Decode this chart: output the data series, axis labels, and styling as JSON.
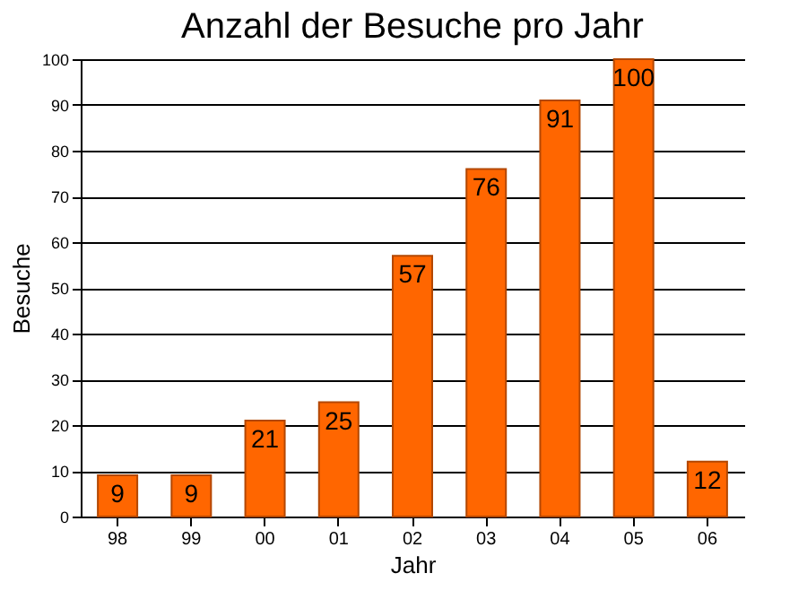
{
  "chart_data": {
    "type": "bar",
    "title": "Anzahl der Besuche pro Jahr",
    "xlabel": "Jahr",
    "ylabel": "Besuche",
    "categories": [
      "98",
      "99",
      "00",
      "01",
      "02",
      "03",
      "04",
      "05",
      "06"
    ],
    "values": [
      9,
      9,
      21,
      25,
      57,
      76,
      91,
      100,
      12
    ],
    "color": "#ff6600",
    "ylim": [
      0,
      100
    ],
    "yticks": [
      0,
      10,
      20,
      30,
      40,
      50,
      60,
      70,
      80,
      90,
      100
    ],
    "grid": "y",
    "data_labels": true
  }
}
